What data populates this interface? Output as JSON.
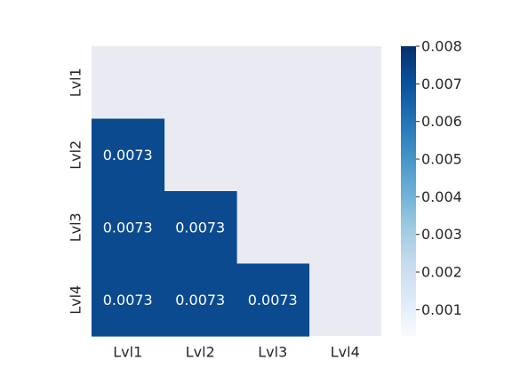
{
  "chart_data": {
    "type": "heatmap",
    "title": "",
    "xlabel": "",
    "ylabel": "",
    "x_categories": [
      "Lvl1",
      "Lvl2",
      "Lvl3",
      "Lvl4"
    ],
    "y_categories": [
      "Lvl1",
      "Lvl2",
      "Lvl3",
      "Lvl4"
    ],
    "mask": "upper-triangle-including-diagonal",
    "cells": [
      {
        "row": 1,
        "col": 0,
        "value": 0.0073,
        "label": "0.0073"
      },
      {
        "row": 2,
        "col": 0,
        "value": 0.0073,
        "label": "0.0073"
      },
      {
        "row": 2,
        "col": 1,
        "value": 0.0073,
        "label": "0.0073"
      },
      {
        "row": 3,
        "col": 0,
        "value": 0.0073,
        "label": "0.0073"
      },
      {
        "row": 3,
        "col": 1,
        "value": 0.0073,
        "label": "0.0073"
      },
      {
        "row": 3,
        "col": 2,
        "value": 0.0073,
        "label": "0.0073"
      }
    ],
    "colorbar": {
      "colormap": "Blues",
      "vmin": 0.0003,
      "vmax": 0.008,
      "ticks": [
        0.001,
        0.002,
        0.003,
        0.004,
        0.005,
        0.006,
        0.007,
        0.008
      ],
      "tick_labels": [
        "0.001",
        "0.002",
        "0.003",
        "0.004",
        "0.005",
        "0.006",
        "0.007",
        "0.008"
      ]
    },
    "colors": {
      "masked_background": "#eaeaf2",
      "cell_fill": "#0b4a8f",
      "cell_text": "#ffffff",
      "tick_text": "#262626",
      "cmap_stops": [
        "#f7fbff",
        "#deebf7",
        "#c6dbef",
        "#9ecae1",
        "#6baed6",
        "#4292c6",
        "#2171b5",
        "#08519c",
        "#08306b"
      ]
    }
  }
}
